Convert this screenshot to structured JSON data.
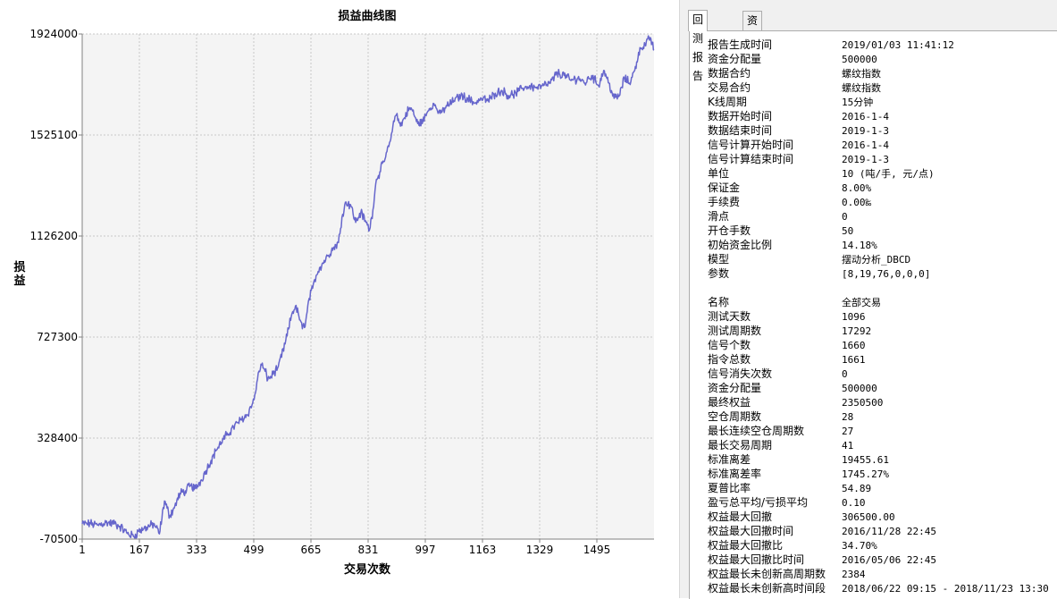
{
  "chart_data": {
    "type": "line",
    "title": "损益曲线图",
    "xlabel": "交易次数",
    "ylabel": "损益",
    "xlim": [
      1,
      1661
    ],
    "ylim": [
      -70500,
      1924000
    ],
    "x_ticks": [
      1,
      167,
      333,
      499,
      665,
      831,
      997,
      1163,
      1329,
      1495
    ],
    "x_tick_labels": [
      "1",
      "167",
      "333",
      "499",
      "665",
      "831",
      "997",
      "1163",
      "1329",
      "1495"
    ],
    "y_ticks": [
      -70500,
      328400,
      727300,
      1126200,
      1525100,
      1924000
    ],
    "y_tick_labels": [
      "-70500",
      "328400",
      "727300",
      "1126200",
      "1525100",
      "1924000"
    ],
    "grid": true,
    "series": [
      {
        "name": "",
        "color": "#6666cc",
        "x": [
          1,
          25,
          45,
          70,
          95,
          110,
          130,
          150,
          165,
          180,
          195,
          210,
          225,
          240,
          255,
          270,
          285,
          300,
          315,
          330,
          345,
          360,
          375,
          390,
          405,
          420,
          440,
          460,
          480,
          500,
          510,
          520,
          530,
          540,
          555,
          570,
          590,
          610,
          620,
          630,
          640,
          650,
          660,
          670,
          680,
          690,
          700,
          715,
          730,
          745,
          755,
          765,
          780,
          795,
          810,
          825,
          835,
          845,
          855,
          865,
          880,
          895,
          905,
          915,
          925,
          935,
          950,
          960,
          975,
          990,
          1005,
          1020,
          1040,
          1060,
          1080,
          1100,
          1120,
          1140,
          1160,
          1180,
          1200,
          1220,
          1240,
          1260,
          1280,
          1300,
          1320,
          1340,
          1360,
          1380,
          1400,
          1420,
          1440,
          1460,
          1480,
          1500,
          1515,
          1530,
          1545,
          1560,
          1575,
          1590,
          1605,
          1620,
          1635,
          1650,
          1661
        ],
        "values": [
          -10000,
          -10000,
          -15000,
          -5000,
          -10000,
          -20000,
          -45000,
          -60000,
          -40000,
          -30000,
          -20000,
          -10000,
          -50000,
          80000,
          20000,
          60000,
          110000,
          120000,
          140000,
          130000,
          160000,
          200000,
          240000,
          280000,
          310000,
          340000,
          370000,
          400000,
          420000,
          480000,
          560000,
          620000,
          600000,
          560000,
          580000,
          610000,
          700000,
          820000,
          850000,
          810000,
          760000,
          790000,
          880000,
          920000,
          970000,
          1000000,
          1020000,
          1050000,
          1080000,
          1100000,
          1200000,
          1260000,
          1250000,
          1180000,
          1220000,
          1180000,
          1150000,
          1230000,
          1350000,
          1380000,
          1430000,
          1500000,
          1580000,
          1610000,
          1560000,
          1590000,
          1630000,
          1620000,
          1570000,
          1580000,
          1620000,
          1650000,
          1610000,
          1640000,
          1660000,
          1680000,
          1670000,
          1650000,
          1670000,
          1660000,
          1690000,
          1700000,
          1680000,
          1690000,
          1710000,
          1720000,
          1710000,
          1720000,
          1730000,
          1770000,
          1760000,
          1740000,
          1750000,
          1730000,
          1760000,
          1720000,
          1780000,
          1730000,
          1670000,
          1680000,
          1750000,
          1730000,
          1780000,
          1870000,
          1880000,
          1910000,
          1860000
        ]
      }
    ]
  },
  "tabs": {
    "report": "回测报告",
    "equity": "资金曲线"
  },
  "report": {
    "section1": [
      {
        "key": "报告生成时间",
        "value": "2019/01/03 11:41:12"
      },
      {
        "key": "资金分配量",
        "value": "500000"
      },
      {
        "key": "数据合约",
        "value": "螺纹指数"
      },
      {
        "key": "交易合约",
        "value": "螺纹指数"
      },
      {
        "key": "K线周期",
        "value": "15分钟"
      },
      {
        "key": "数据开始时间",
        "value": "2016-1-4"
      },
      {
        "key": "数据结束时间",
        "value": "2019-1-3"
      },
      {
        "key": "信号计算开始时间",
        "value": "2016-1-4"
      },
      {
        "key": "信号计算结束时间",
        "value": "2019-1-3"
      },
      {
        "key": "单位",
        "value": "10 (吨/手, 元/点)"
      },
      {
        "key": "保证金",
        "value": "8.00%"
      },
      {
        "key": "手续费",
        "value": "0.00‰"
      },
      {
        "key": "滑点",
        "value": "0"
      },
      {
        "key": "开仓手数",
        "value": "50"
      },
      {
        "key": "初始资金比例",
        "value": "14.18%"
      },
      {
        "key": "模型",
        "value": "摆动分析_DBCD"
      },
      {
        "key": "参数",
        "value": "[8,19,76,0,0,0]"
      }
    ],
    "section2": [
      {
        "key": "名称",
        "value": "全部交易"
      },
      {
        "key": "测试天数",
        "value": "1096"
      },
      {
        "key": "测试周期数",
        "value": "17292"
      },
      {
        "key": "信号个数",
        "value": "1660"
      },
      {
        "key": "指令总数",
        "value": "1661"
      },
      {
        "key": "信号消失次数",
        "value": "0"
      },
      {
        "key": "资金分配量",
        "value": "500000"
      },
      {
        "key": "最终权益",
        "value": "2350500"
      },
      {
        "key": "空仓周期数",
        "value": "28"
      },
      {
        "key": "最长连续空仓周期数",
        "value": "27"
      },
      {
        "key": "最长交易周期",
        "value": "41"
      },
      {
        "key": "标准离差",
        "value": "19455.61"
      },
      {
        "key": "标准离差率",
        "value": "1745.27%"
      },
      {
        "key": "夏普比率",
        "value": "54.89"
      },
      {
        "key": "盈亏总平均/亏损平均",
        "value": "0.10"
      },
      {
        "key": "权益最大回撤",
        "value": "306500.00"
      },
      {
        "key": "权益最大回撤时间",
        "value": "2016/11/28 22:45"
      },
      {
        "key": "权益最大回撤比",
        "value": "34.70%"
      },
      {
        "key": "权益最大回撤比时间",
        "value": "2016/05/06 22:45"
      },
      {
        "key": "权益最长未创新高周期数",
        "value": "2384"
      },
      {
        "key": "权益最长未创新高时间段",
        "value": "2018/06/22 09:15 - 2018/11/23 13:30"
      }
    ]
  }
}
